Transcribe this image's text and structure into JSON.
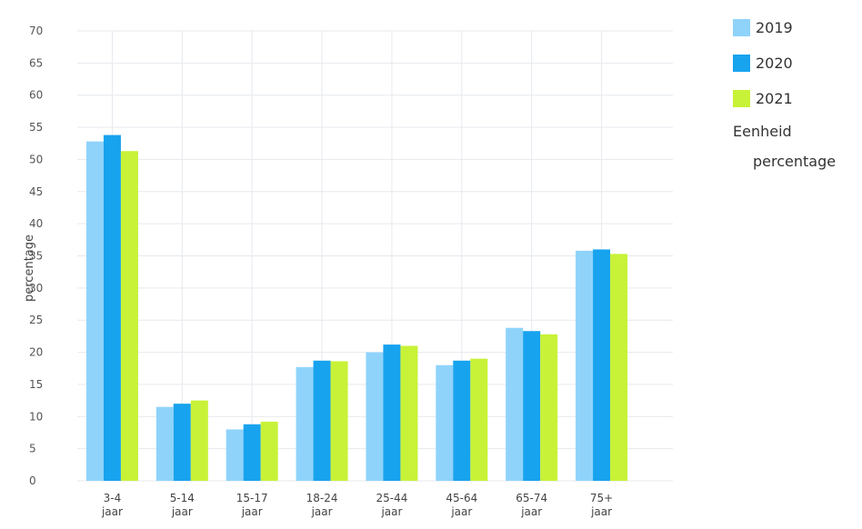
{
  "chart_data": {
    "type": "bar",
    "title": "",
    "xlabel": "",
    "ylabel": "percentage",
    "ylim": [
      0,
      70
    ],
    "yticks": [
      0,
      5,
      10,
      15,
      20,
      25,
      30,
      35,
      40,
      45,
      50,
      55,
      60,
      65,
      70
    ],
    "grid": true,
    "legend_position": "right",
    "categories": [
      [
        "3-4",
        "jaar"
      ],
      [
        "5-14",
        "jaar"
      ],
      [
        "15-17",
        "jaar"
      ],
      [
        "18-24",
        "jaar"
      ],
      [
        "25-44",
        "jaar"
      ],
      [
        "45-64",
        "jaar"
      ],
      [
        "65-74",
        "jaar"
      ],
      [
        "75+",
        "jaar"
      ]
    ],
    "series": [
      {
        "name": "2019",
        "color": "#8fd3fb",
        "values": [
          52.8,
          11.5,
          8.0,
          17.7,
          20.0,
          18.0,
          23.8,
          35.8
        ]
      },
      {
        "name": "2020",
        "color": "#18a3ee",
        "values": [
          53.8,
          12.0,
          8.8,
          18.7,
          21.2,
          18.7,
          23.3,
          36.0
        ]
      },
      {
        "name": "2021",
        "color": "#c8f237",
        "values": [
          51.3,
          12.5,
          9.2,
          18.6,
          21.0,
          19.0,
          22.8,
          35.3
        ]
      }
    ]
  },
  "legend": {
    "items": [
      {
        "label": "2019",
        "color": "#8fd3fb"
      },
      {
        "label": "2020",
        "color": "#18a3ee"
      },
      {
        "label": "2021",
        "color": "#c8f237"
      }
    ],
    "unit_title": "Eenheid",
    "unit_value": "percentage"
  }
}
